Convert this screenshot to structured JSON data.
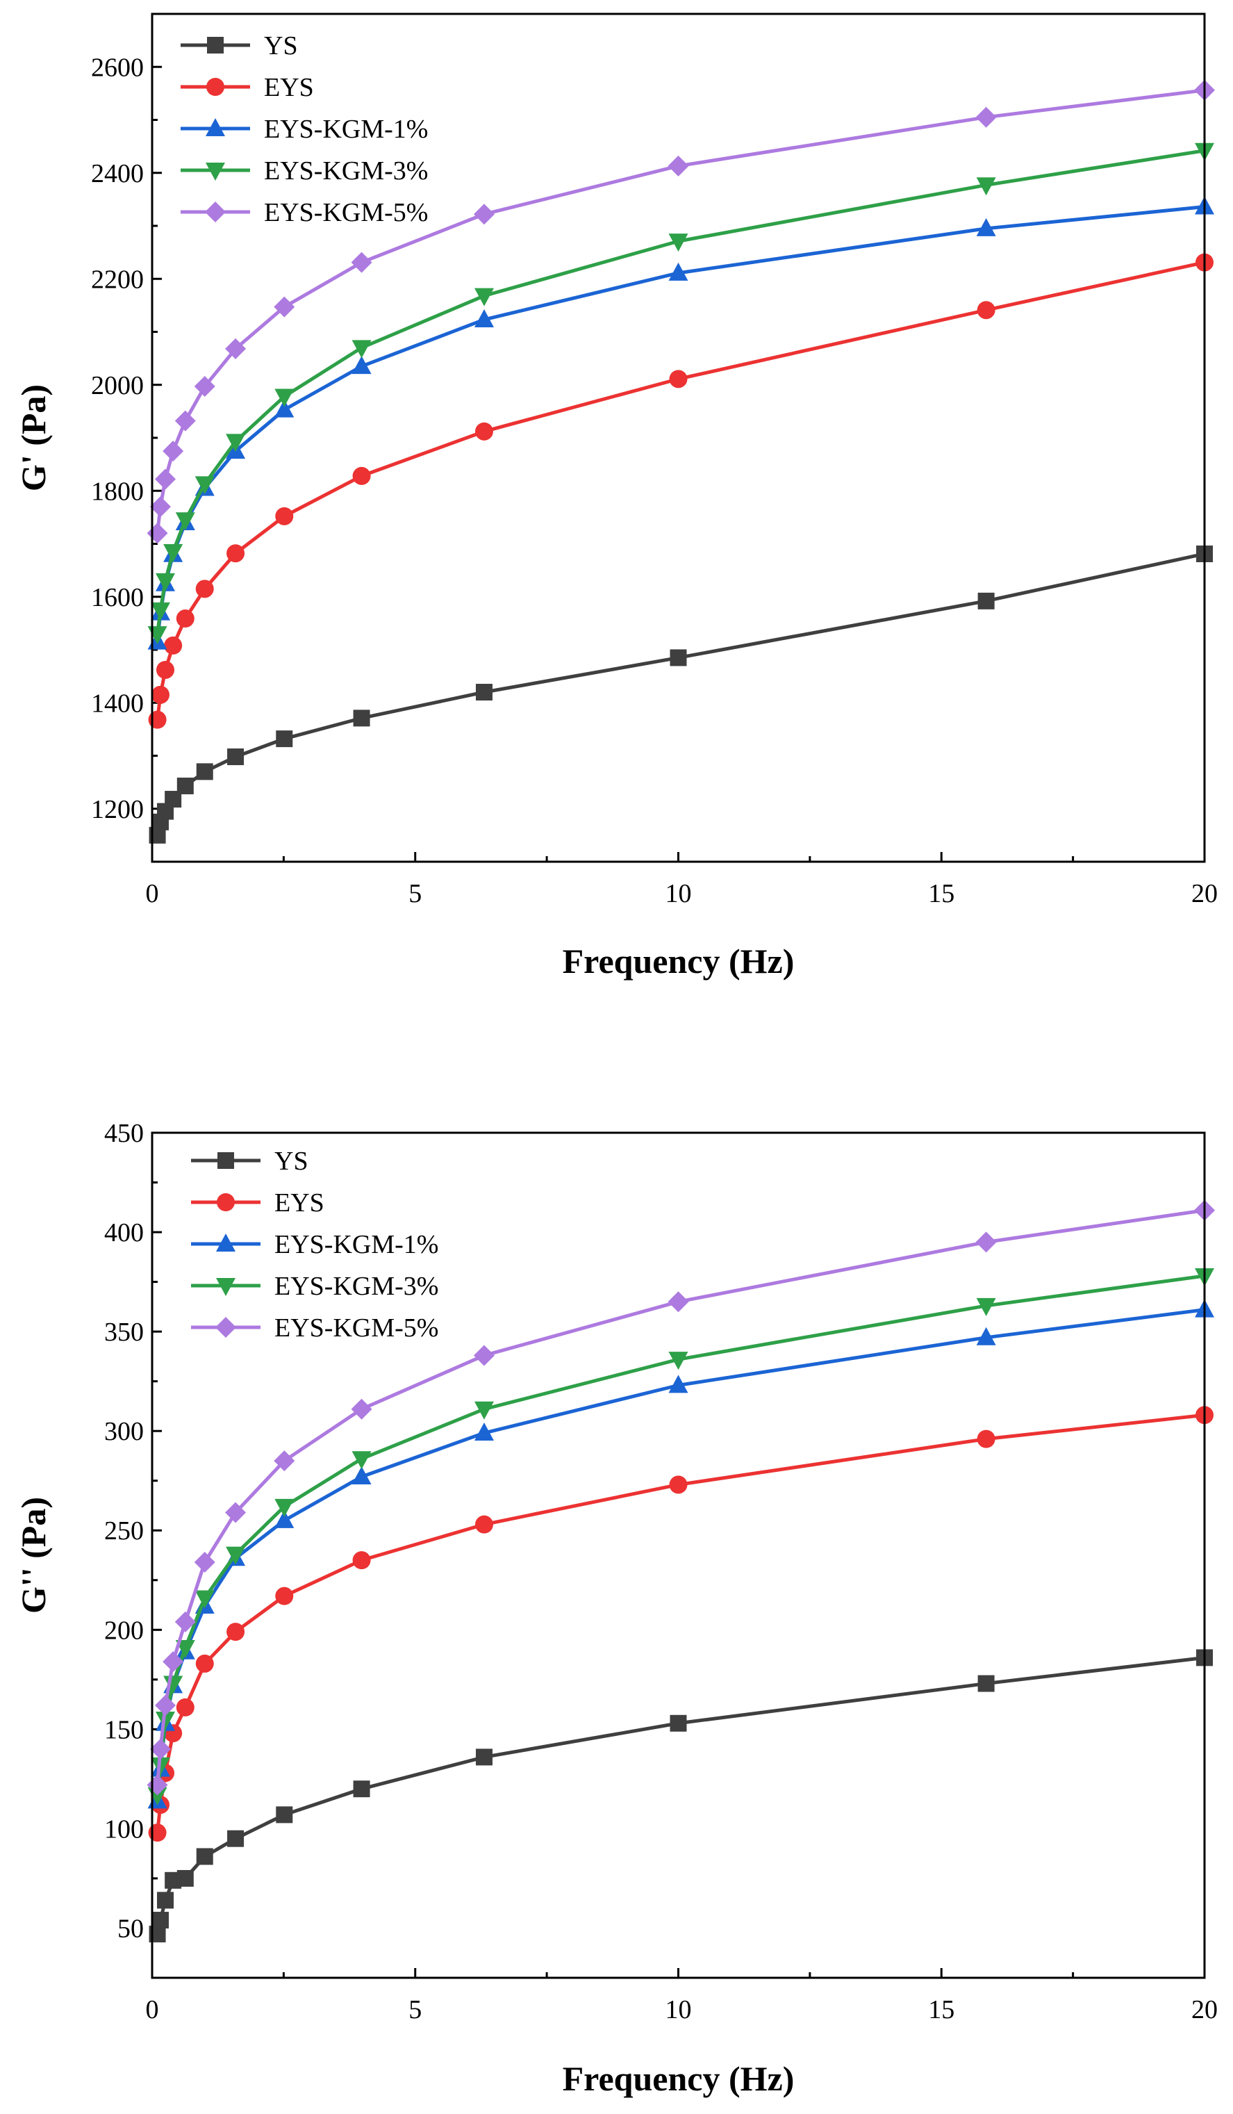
{
  "colors": {
    "YS": "#3f3f3f",
    "EYS": "#ec3232",
    "EYS-KGM-1%": "#1b64d4",
    "EYS-KGM-3%": "#2ea048",
    "EYS-KGM-5%": "#ad7ae0"
  },
  "chart_data": [
    {
      "type": "line",
      "id": "storage-modulus",
      "xlabel": "Frequency (Hz)",
      "ylabel": "G' (Pa)",
      "xlim": [
        0,
        20
      ],
      "ylim": [
        1100,
        2700
      ],
      "x_ticks": [
        0,
        5,
        10,
        15,
        20
      ],
      "x_tick_labels": [
        "0",
        "5",
        "10",
        "15",
        "20"
      ],
      "y_ticks": [
        1200,
        1400,
        1600,
        1800,
        2000,
        2200,
        2400,
        2600
      ],
      "y_tick_labels": [
        "1200",
        "1400",
        "1600",
        "1800",
        "2000",
        "2200",
        "2400",
        "2600"
      ],
      "legend": "top-left",
      "x": [
        0.1,
        0.158,
        0.251,
        0.398,
        0.631,
        1,
        1.585,
        2.512,
        3.981,
        6.31,
        10,
        15.85,
        20
      ],
      "series": [
        {
          "name": "YS",
          "marker": "square",
          "values": [
            1150,
            1175,
            1195,
            1218,
            1243,
            1270,
            1298,
            1332,
            1371,
            1420,
            1485,
            1592,
            1681
          ]
        },
        {
          "name": "EYS",
          "marker": "circle",
          "values": [
            1368,
            1415,
            1462,
            1508,
            1559,
            1615,
            1682,
            1752,
            1828,
            1912,
            2011,
            2141,
            2231
          ]
        },
        {
          "name": "EYS-KGM-1%",
          "marker": "triangle-up",
          "values": [
            1515,
            1570,
            1625,
            1680,
            1740,
            1805,
            1875,
            1953,
            2035,
            2123,
            2211,
            2295,
            2336
          ]
        },
        {
          "name": "EYS-KGM-3%",
          "marker": "triangle-down",
          "values": [
            1530,
            1575,
            1630,
            1685,
            1745,
            1813,
            1893,
            1978,
            2070,
            2168,
            2271,
            2377,
            2442
          ]
        },
        {
          "name": "EYS-KGM-5%",
          "marker": "diamond",
          "values": [
            1720,
            1770,
            1822,
            1875,
            1932,
            1997,
            2068,
            2147,
            2231,
            2322,
            2413,
            2505,
            2556
          ]
        }
      ]
    },
    {
      "type": "line",
      "id": "loss-modulus",
      "xlabel": "Frequency (Hz)",
      "ylabel": "G'' (Pa)",
      "xlim": [
        0,
        20
      ],
      "ylim": [
        25,
        450
      ],
      "x_ticks": [
        0,
        5,
        10,
        15,
        20
      ],
      "x_tick_labels": [
        "0",
        "5",
        "10",
        "15",
        "20"
      ],
      "y_ticks": [
        50,
        100,
        150,
        200,
        250,
        300,
        350,
        400,
        450
      ],
      "y_tick_labels": [
        "50",
        "100",
        "150",
        "200",
        "250",
        "300",
        "350",
        "400",
        "450"
      ],
      "legend": "top-left",
      "x": [
        0.1,
        0.158,
        0.251,
        0.398,
        0.631,
        1,
        1.585,
        2.512,
        3.981,
        6.31,
        10,
        15.85,
        20
      ],
      "series": [
        {
          "name": "YS",
          "marker": "square",
          "values": [
            47,
            54,
            64,
            74,
            75,
            86,
            95,
            107,
            120,
            136,
            153,
            173,
            186
          ]
        },
        {
          "name": "EYS",
          "marker": "circle",
          "values": [
            98,
            112,
            128,
            148,
            161,
            183,
            199,
            217,
            235,
            253,
            273,
            296,
            308
          ]
        },
        {
          "name": "EYS-KGM-1%",
          "marker": "triangle-up",
          "values": [
            114,
            130,
            153,
            172,
            189,
            212,
            236,
            255,
            277,
            299,
            323,
            347,
            361
          ]
        },
        {
          "name": "EYS-KGM-3%",
          "marker": "triangle-down",
          "values": [
            117,
            132,
            155,
            173,
            191,
            216,
            238,
            262,
            286,
            311,
            336,
            363,
            378
          ]
        },
        {
          "name": "EYS-KGM-5%",
          "marker": "diamond",
          "values": [
            122,
            140,
            162,
            184,
            204,
            234,
            259,
            285,
            311,
            338,
            365,
            395,
            411
          ]
        }
      ]
    }
  ]
}
